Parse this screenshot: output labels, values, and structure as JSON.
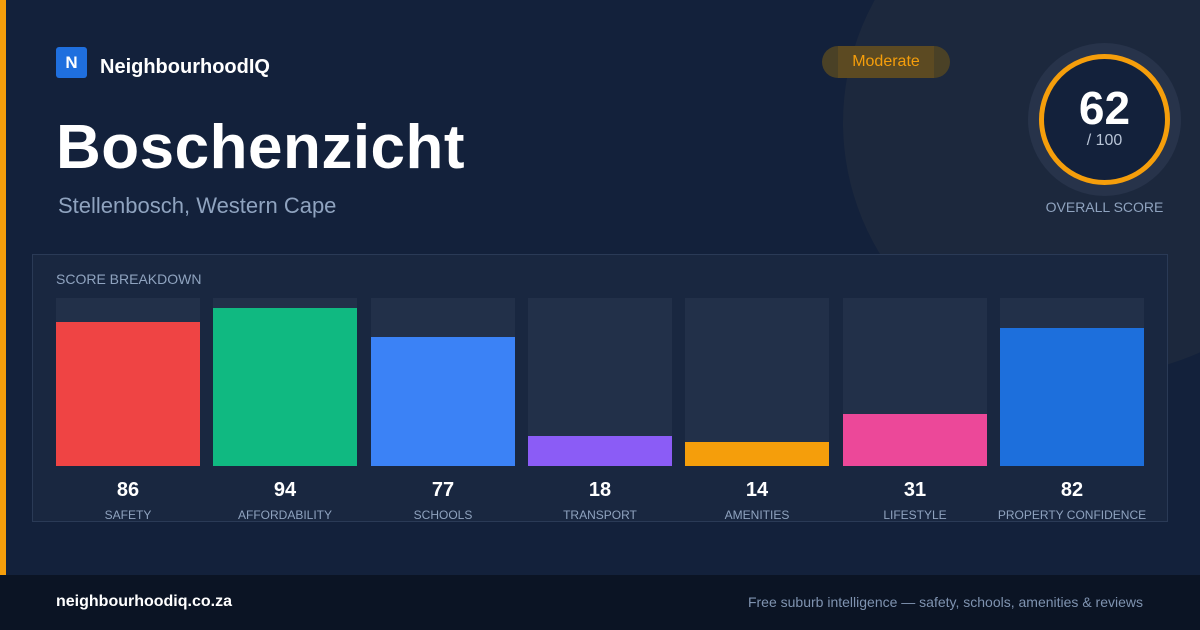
{
  "brand": {
    "logo_letter": "N",
    "name": "NeighbourhoodIQ",
    "color": "#1f6fde"
  },
  "location": {
    "title": "Boschenzicht",
    "subtitle": "Stellenbosch, Western Cape"
  },
  "badge": {
    "label": "Moderate",
    "color": "#f59e0b"
  },
  "overall": {
    "score": "62",
    "max_label": "/ 100",
    "label": "OVERALL SCORE",
    "value": 62,
    "max": 100,
    "ring_color": "#f59e0b"
  },
  "breakdown": {
    "title": "SCORE BREAKDOWN",
    "items": [
      {
        "label": "SAFETY",
        "value": "86",
        "color": "#ef4444"
      },
      {
        "label": "AFFORDABILITY",
        "value": "94",
        "color": "#10b981"
      },
      {
        "label": "SCHOOLS",
        "value": "77",
        "color": "#3b82f6"
      },
      {
        "label": "TRANSPORT",
        "value": "18",
        "color": "#8b5cf6"
      },
      {
        "label": "AMENITIES",
        "value": "14",
        "color": "#f59e0b"
      },
      {
        "label": "LIFESTYLE",
        "value": "31",
        "color": "#ec4899"
      },
      {
        "label": "PROPERTY CONFIDENCE",
        "value": "82",
        "color": "#1d6fdc"
      }
    ]
  },
  "footer": {
    "url": "neighbourhoodiq.co.za",
    "tagline": "Free suburb intelligence — safety, schools, amenities & reviews"
  }
}
